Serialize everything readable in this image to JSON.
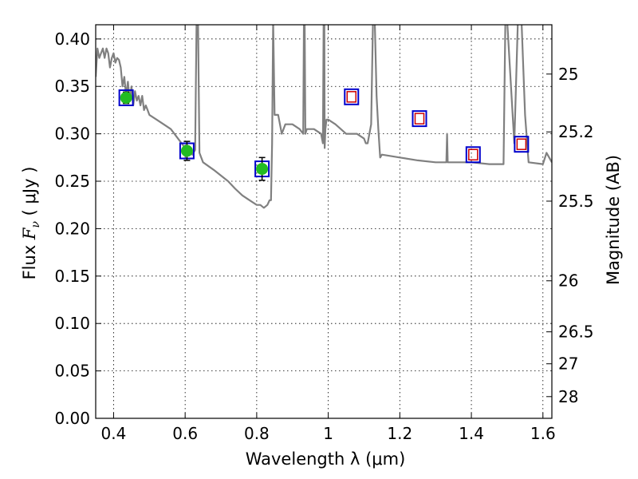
{
  "chart_data": {
    "type": "scatter",
    "title": "",
    "xlabel": "Wavelength  λ (μm)",
    "ylabel": "Flux  F_ν  ( μJy )",
    "y2label": "Magnitude (AB)",
    "xlim": [
      0.35,
      1.625
    ],
    "ylim": [
      0.0,
      0.415
    ],
    "grid": true,
    "legend": "none",
    "x_ticks": [
      0.4,
      0.6,
      0.8,
      1.0,
      1.2,
      1.4,
      1.6
    ],
    "x_tick_labels": [
      "0.4",
      "0.6",
      "0.8",
      "1",
      "1.2",
      "1.4",
      "1.6"
    ],
    "y_ticks": [
      0.0,
      0.05,
      0.1,
      0.15,
      0.2,
      0.25,
      0.3,
      0.35,
      0.4
    ],
    "y_tick_labels": [
      "0.00",
      "0.05",
      "0.10",
      "0.15",
      "0.20",
      "0.25",
      "0.30",
      "0.35",
      "0.40"
    ],
    "y2_ticks": [
      {
        "label": "25",
        "flux": 0.363
      },
      {
        "label": "25.2",
        "flux": 0.302
      },
      {
        "label": "25.5",
        "flux": 0.229
      },
      {
        "label": "26",
        "flux": 0.145
      },
      {
        "label": "26.5",
        "flux": 0.0912
      },
      {
        "label": "27",
        "flux": 0.0575
      },
      {
        "label": "28",
        "flux": 0.0229
      }
    ],
    "series": [
      {
        "kind": "line",
        "color": "#808080",
        "x": [
          0.35,
          0.355,
          0.36,
          0.365,
          0.37,
          0.375,
          0.38,
          0.385,
          0.39,
          0.395,
          0.4,
          0.405,
          0.41,
          0.415,
          0.42,
          0.425,
          0.43,
          0.435,
          0.44,
          0.445,
          0.45,
          0.455,
          0.46,
          0.465,
          0.47,
          0.475,
          0.48,
          0.485,
          0.49,
          0.495,
          0.5,
          0.52,
          0.54,
          0.56,
          0.58,
          0.59,
          0.6,
          0.61,
          0.62,
          0.628,
          0.632,
          0.636,
          0.64,
          0.645,
          0.65,
          0.68,
          0.7,
          0.72,
          0.74,
          0.76,
          0.78,
          0.8,
          0.81,
          0.82,
          0.83,
          0.836,
          0.84,
          0.843,
          0.846,
          0.85,
          0.86,
          0.87,
          0.88,
          0.9,
          0.92,
          0.93,
          0.932,
          0.934,
          0.936,
          0.94,
          0.96,
          0.98,
          0.985,
          0.987,
          0.989,
          0.99,
          0.992,
          0.995,
          1.0,
          1.02,
          1.05,
          1.08,
          1.1,
          1.105,
          1.11,
          1.12,
          1.125,
          1.13,
          1.135,
          1.14,
          1.145,
          1.15,
          1.2,
          1.25,
          1.3,
          1.33,
          1.332,
          1.334,
          1.35,
          1.4,
          1.45,
          1.48,
          1.49,
          1.495,
          1.5,
          1.52,
          1.53,
          1.535,
          1.54,
          1.55,
          1.56,
          1.6,
          1.61,
          1.625
        ],
        "y": [
          0.36,
          0.39,
          0.38,
          0.385,
          0.39,
          0.38,
          0.39,
          0.385,
          0.37,
          0.38,
          0.385,
          0.375,
          0.38,
          0.378,
          0.37,
          0.35,
          0.36,
          0.34,
          0.355,
          0.335,
          0.35,
          0.33,
          0.345,
          0.335,
          0.34,
          0.33,
          0.34,
          0.325,
          0.33,
          0.325,
          0.32,
          0.315,
          0.31,
          0.305,
          0.295,
          0.29,
          0.285,
          0.282,
          0.278,
          0.283,
          0.42,
          0.42,
          0.28,
          0.275,
          0.27,
          0.262,
          0.256,
          0.25,
          0.242,
          0.235,
          0.23,
          0.225,
          0.225,
          0.222,
          0.225,
          0.23,
          0.23,
          0.29,
          0.42,
          0.32,
          0.32,
          0.3,
          0.31,
          0.31,
          0.305,
          0.3,
          0.42,
          0.42,
          0.3,
          0.305,
          0.305,
          0.3,
          0.29,
          0.42,
          0.42,
          0.285,
          0.305,
          0.315,
          0.315,
          0.31,
          0.3,
          0.3,
          0.295,
          0.29,
          0.29,
          0.31,
          0.42,
          0.42,
          0.34,
          0.305,
          0.275,
          0.278,
          0.275,
          0.272,
          0.27,
          0.27,
          0.3,
          0.27,
          0.27,
          0.27,
          0.268,
          0.268,
          0.268,
          0.42,
          0.42,
          0.29,
          0.42,
          0.42,
          0.42,
          0.32,
          0.27,
          0.268,
          0.28,
          0.27
        ]
      },
      {
        "kind": "open-square-blue",
        "color": "#0000cc",
        "x": [
          0.435,
          0.605,
          0.815,
          1.065,
          1.255,
          1.405,
          1.54
        ],
        "y": [
          0.338,
          0.282,
          0.263,
          0.339,
          0.316,
          0.278,
          0.289
        ]
      },
      {
        "kind": "open-square-red",
        "color": "#cc0000",
        "x": [
          1.065,
          1.255,
          1.405,
          1.54
        ],
        "y": [
          0.339,
          0.316,
          0.278,
          0.289
        ]
      },
      {
        "kind": "green-points-with-errors",
        "color": "#22bb22",
        "x": [
          0.435,
          0.605,
          0.815
        ],
        "y": [
          0.338,
          0.282,
          0.263
        ],
        "yerr": [
          0.006,
          0.01,
          0.012
        ]
      }
    ]
  }
}
